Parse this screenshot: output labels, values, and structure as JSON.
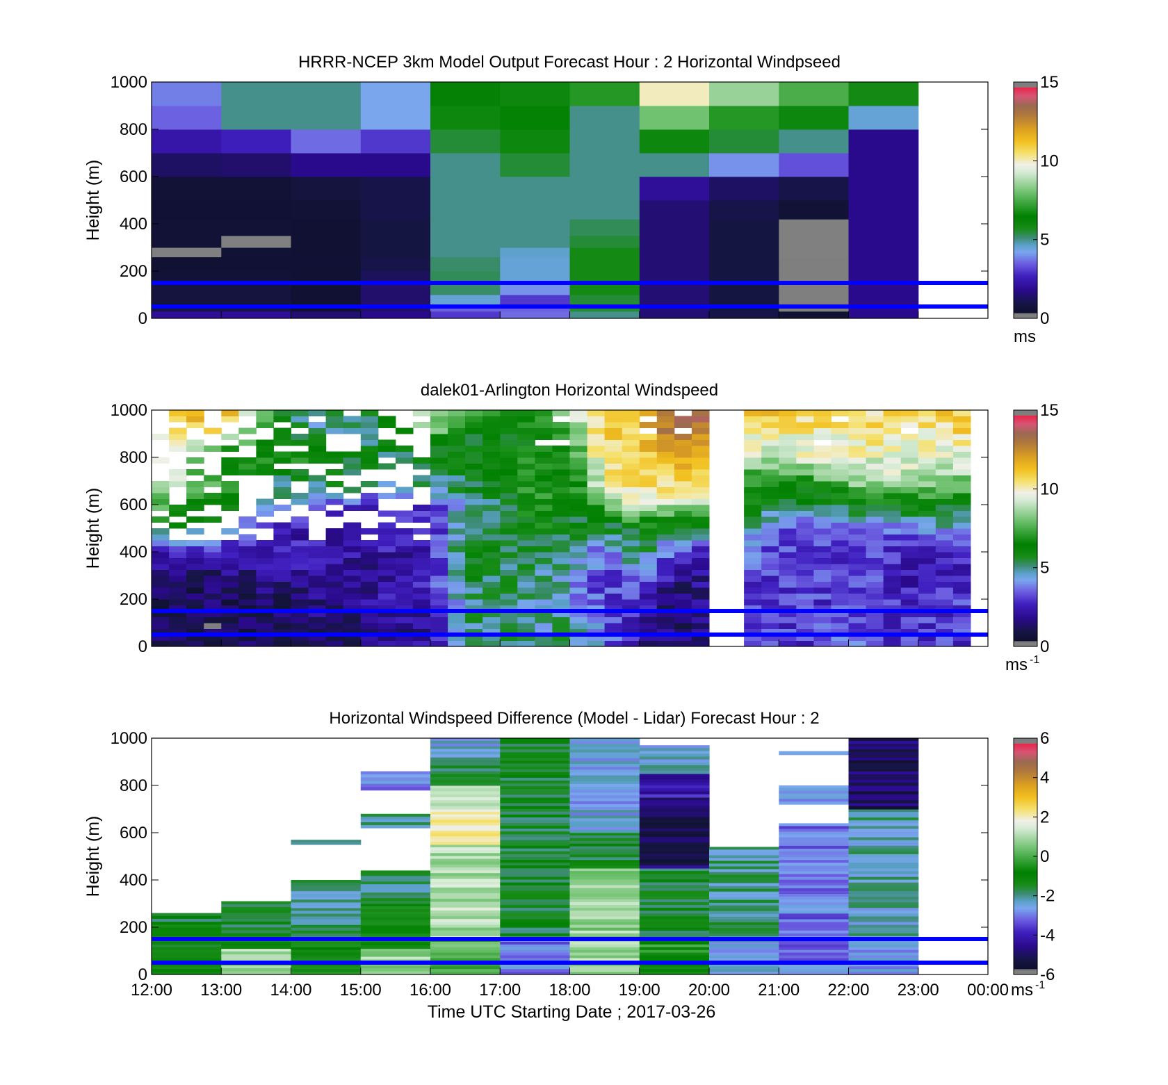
{
  "chart_data": [
    {
      "type": "heatmap",
      "title": "HRRR-NCEP 3km Model Output   Forecast Hour : 2 Horizontal Windpseed",
      "xlabel": "",
      "ylabel": "Height (m)",
      "x_hours": [
        12,
        13,
        14,
        15,
        16,
        17,
        18,
        19,
        20,
        21,
        22,
        23,
        24
      ],
      "ylim": [
        0,
        1000
      ],
      "yticks": [
        "0",
        "200",
        "400",
        "600",
        "800",
        "1000"
      ],
      "colorbar": {
        "min": 0,
        "max": 15,
        "ticks": [
          "0",
          "5",
          "10",
          "15"
        ],
        "unit": "ms",
        "unit_sup": ""
      },
      "reference_lines_m": [
        50,
        150
      ],
      "y_edges": [
        0,
        30,
        50,
        100,
        150,
        200,
        260,
        300,
        350,
        420,
        500,
        600,
        700,
        800,
        900,
        1000
      ],
      "columns": [
        {
          "start": 12,
          "end": 13,
          "values": [
            2.0,
            1.0,
            0.8,
            0.8,
            0.6,
            0.5,
            null,
            0.6,
            0.6,
            0.5,
            0.6,
            1.3,
            2.3,
            3.5,
            3.8
          ]
        },
        {
          "start": 13,
          "end": 14,
          "values": [
            2.0,
            1.0,
            0.8,
            0.8,
            0.6,
            0.5,
            0.6,
            null,
            0.6,
            0.5,
            0.6,
            1.4,
            2.6,
            5.0,
            5.0
          ]
        },
        {
          "start": 14,
          "end": 15,
          "values": [
            1.5,
            0.5,
            0.5,
            0.5,
            0.5,
            0.5,
            0.5,
            0.5,
            0.5,
            0.6,
            0.8,
            1.8,
            3.6,
            5.0,
            5.0
          ]
        },
        {
          "start": 15,
          "end": 16,
          "values": [
            1.8,
            1.4,
            1.4,
            1.4,
            1.2,
            1.0,
            0.9,
            0.9,
            0.9,
            1.0,
            1.0,
            1.8,
            3.0,
            4.2,
            4.2
          ]
        },
        {
          "start": 16,
          "end": 17,
          "values": [
            3.0,
            3.5,
            4.5,
            5.2,
            5.3,
            5.2,
            5.0,
            5.0,
            5.0,
            5.0,
            5.0,
            5.0,
            5.5,
            6.0,
            6.3
          ]
        },
        {
          "start": 17,
          "end": 18,
          "values": [
            3.6,
            3.5,
            3.0,
            4.0,
            4.5,
            4.5,
            4.6,
            5.0,
            5.0,
            5.0,
            5.0,
            5.5,
            6.0,
            6.5,
            6.0
          ]
        },
        {
          "start": 18,
          "end": 19,
          "values": [
            5.0,
            5.5,
            5.5,
            5.8,
            5.8,
            5.8,
            5.8,
            5.5,
            5.3,
            5.0,
            5.0,
            5.0,
            5.0,
            5.0,
            7.0
          ]
        },
        {
          "start": 19,
          "end": 20,
          "values": [
            1.5,
            1.5,
            1.5,
            1.5,
            1.5,
            1.5,
            1.5,
            1.5,
            1.5,
            1.5,
            2.0,
            5.0,
            6.0,
            8.0,
            10.0
          ]
        },
        {
          "start": 20,
          "end": 21,
          "values": [
            1.0,
            0.9,
            0.9,
            0.9,
            0.9,
            0.9,
            0.9,
            0.9,
            0.9,
            1.0,
            1.3,
            4.0,
            5.5,
            7.0,
            8.5
          ]
        },
        {
          "start": 21,
          "end": 22,
          "values": [
            0.5,
            0.3,
            0.3,
            0.3,
            0.3,
            0.3,
            null,
            null,
            null,
            0.6,
            1.0,
            3.3,
            5.0,
            6.0,
            7.5
          ]
        },
        {
          "start": 22,
          "end": 23,
          "values": [
            1.8,
            1.8,
            1.8,
            1.8,
            1.8,
            1.8,
            1.8,
            1.8,
            1.8,
            1.8,
            1.8,
            1.8,
            1.8,
            4.5,
            5.8
          ]
        }
      ]
    },
    {
      "type": "heatmap",
      "title": "dalek01-Arlington  Horizontal Windspeed",
      "xlabel": "",
      "ylabel": "Height (m)",
      "x_hours": [
        12,
        13,
        14,
        15,
        16,
        17,
        18,
        19,
        20,
        21,
        22,
        23,
        24
      ],
      "ylim": [
        0,
        1000
      ],
      "yticks": [
        "0",
        "200",
        "400",
        "600",
        "800",
        "1000"
      ],
      "colorbar": {
        "min": 0,
        "max": 15,
        "ticks": [
          "0",
          "5",
          "10",
          "15"
        ],
        "unit": "ms",
        "unit_sup": "-1"
      },
      "reference_lines_m": [
        50,
        150
      ],
      "gap_hours": [
        [
          20.1,
          20.6
        ],
        [
          23.8,
          24.0
        ]
      ],
      "profile_knots_hours": [
        12,
        13,
        14,
        15,
        16,
        16.5,
        17,
        17.5,
        18,
        18.5,
        19,
        19.5,
        20,
        20.1,
        20.6,
        21,
        21.5,
        22,
        22.5,
        23,
        23.5,
        23.8
      ],
      "profile_knots_m": [
        0,
        100,
        200,
        300,
        400,
        500,
        600,
        700,
        800,
        900,
        1000
      ],
      "profiles": [
        [
          1.0,
          1.0,
          1.0,
          1.5,
          2.5,
          6.0,
          8.0,
          9.5,
          10.5,
          10.5,
          11.0
        ],
        [
          1.0,
          1.0,
          1.2,
          1.5,
          2.5,
          5.0,
          5.5,
          7.5,
          6.0,
          10.0,
          12.0
        ],
        [
          1.5,
          1.5,
          1.5,
          1.8,
          2.5,
          2.5,
          4.5,
          5.0,
          7.0,
          5.0,
          5.0
        ],
        [
          1.5,
          1.8,
          2.0,
          2.0,
          2.2,
          2.5,
          3.0,
          5.5,
          5.5,
          5.0,
          5.0
        ],
        [
          2.0,
          2.0,
          2.5,
          2.5,
          2.5,
          2.5,
          3.0,
          5.0,
          5.5,
          8.0,
          9.0
        ],
        [
          4.5,
          5.0,
          5.0,
          5.5,
          6.0,
          5.5,
          5.0,
          5.5,
          6.0,
          6.0,
          9.0
        ],
        [
          5.0,
          5.5,
          5.0,
          5.5,
          5.5,
          5.0,
          5.5,
          6.0,
          6.5,
          6.0,
          6.5
        ],
        [
          5.0,
          4.5,
          5.0,
          5.0,
          5.5,
          6.5,
          7.0,
          7.0,
          6.5,
          6.0,
          7.0
        ],
        [
          5.0,
          5.0,
          4.5,
          4.5,
          5.0,
          5.5,
          6.0,
          6.0,
          6.5,
          7.5,
          9.0
        ],
        [
          4.0,
          3.5,
          3.0,
          3.0,
          3.5,
          5.5,
          7.5,
          10.0,
          10.5,
          11.0,
          11.0
        ],
        [
          2.0,
          2.5,
          3.0,
          4.0,
          5.5,
          6.0,
          9.5,
          11.0,
          11.0,
          11.0,
          11.0
        ],
        [
          1.5,
          1.5,
          1.0,
          2.0,
          3.0,
          5.5,
          9.0,
          10.5,
          11.5,
          13.0,
          14.0
        ],
        [
          1.5,
          1.5,
          2.0,
          2.0,
          2.5,
          5.0,
          9.0,
          10.5,
          12.0,
          12.5,
          14.0
        ],
        [
          2.5,
          2.5,
          3.0,
          3.0,
          3.5,
          5.0,
          6.0,
          7.0,
          7.0,
          7.0,
          7.0
        ],
        [
          3.0,
          3.0,
          3.0,
          3.0,
          3.5,
          4.5,
          6.0,
          7.0,
          9.0,
          10.0,
          11.0
        ],
        [
          3.0,
          3.0,
          3.0,
          3.0,
          3.0,
          3.5,
          5.5,
          6.5,
          9.0,
          10.0,
          11.0
        ],
        [
          3.0,
          3.0,
          3.0,
          3.0,
          3.0,
          3.5,
          5.5,
          7.0,
          9.5,
          10.0,
          11.0
        ],
        [
          3.5,
          3.5,
          3.0,
          3.0,
          3.0,
          4.0,
          6.0,
          8.5,
          9.5,
          10.0,
          11.0
        ],
        [
          3.0,
          3.0,
          3.0,
          3.0,
          3.0,
          3.5,
          6.0,
          9.0,
          9.5,
          10.5,
          10.5
        ],
        [
          3.0,
          3.0,
          2.5,
          2.0,
          2.5,
          4.0,
          6.5,
          8.5,
          9.5,
          10.0,
          10.5
        ],
        [
          3.0,
          3.0,
          3.0,
          2.5,
          2.5,
          4.5,
          6.0,
          8.0,
          9.5,
          10.5,
          11.0
        ],
        [
          3.0,
          3.0,
          3.0,
          2.5,
          2.5,
          4.5,
          6.0,
          8.0,
          9.5,
          10.5,
          11.0
        ]
      ]
    },
    {
      "type": "heatmap",
      "title": "Horizontal Windspeed Difference (Model - Lidar) Forecast Hour : 2",
      "xlabel": "Time UTC  Starting Date ; 2017-03-26",
      "ylabel": "Height (m)",
      "x_hours": [
        12,
        13,
        14,
        15,
        16,
        17,
        18,
        19,
        20,
        21,
        22,
        23,
        24
      ],
      "xticks": [
        "12:00",
        "13:00",
        "14:00",
        "15:00",
        "16:00",
        "17:00",
        "18:00",
        "19:00",
        "20:00",
        "21:00",
        "22:00",
        "23:00",
        "00:00"
      ],
      "ylim": [
        0,
        1000
      ],
      "yticks": [
        "0",
        "200",
        "400",
        "600",
        "800",
        "1000"
      ],
      "colorbar": {
        "min": -6,
        "max": 6,
        "ticks": [
          "-6",
          "-4",
          "-2",
          "0",
          "2",
          "4",
          "6"
        ],
        "unit": "ms",
        "unit_sup": "-1"
      },
      "reference_lines_m": [
        50,
        150
      ],
      "columns": [
        {
          "start": 12,
          "end": 13,
          "segments": [
            [
              0,
              150,
              -1.0
            ],
            [
              150,
              260,
              -1.5
            ]
          ]
        },
        {
          "start": 13,
          "end": 14,
          "segments": [
            [
              0,
              40,
              0.5
            ],
            [
              40,
              60,
              -0.5
            ],
            [
              60,
              110,
              1.0
            ],
            [
              110,
              150,
              -0.5
            ],
            [
              150,
              310,
              -1.5
            ]
          ]
        },
        {
          "start": 14,
          "end": 15,
          "segments": [
            [
              0,
              150,
              -1.0
            ],
            [
              150,
              400,
              -2.0
            ],
            [
              550,
              570,
              -2.5
            ]
          ]
        },
        {
          "start": 15,
          "end": 16,
          "segments": [
            [
              0,
              40,
              0.5
            ],
            [
              40,
              110,
              0.8
            ],
            [
              110,
              150,
              -0.5
            ],
            [
              150,
              300,
              -1.0
            ],
            [
              300,
              440,
              -1.8
            ],
            [
              620,
              680,
              -2.0
            ],
            [
              780,
              820,
              -3.0
            ],
            [
              820,
              860,
              -3.0
            ]
          ]
        },
        {
          "start": 16,
          "end": 17,
          "segments": [
            [
              0,
              150,
              0.0
            ],
            [
              150,
              550,
              1.0
            ],
            [
              550,
              700,
              2.0
            ],
            [
              700,
              800,
              1.0
            ],
            [
              800,
              920,
              -1.5
            ],
            [
              920,
              1000,
              -2.5
            ]
          ]
        },
        {
          "start": 17,
          "end": 18,
          "segments": [
            [
              0,
              150,
              -3.0
            ],
            [
              150,
              1000,
              -1.5
            ]
          ]
        },
        {
          "start": 18,
          "end": 19,
          "segments": [
            [
              0,
              150,
              0.8
            ],
            [
              150,
              450,
              0.8
            ],
            [
              450,
              600,
              -1.5
            ],
            [
              600,
              1000,
              -2.5
            ]
          ]
        },
        {
          "start": 19,
          "end": 20,
          "segments": [
            [
              0,
              150,
              -0.5
            ],
            [
              150,
              450,
              -1.5
            ],
            [
              450,
              750,
              -5.0
            ],
            [
              750,
              850,
              -4.0
            ],
            [
              850,
              970,
              -2.5
            ]
          ]
        },
        {
          "start": 20,
          "end": 21,
          "segments": [
            [
              0,
              150,
              -2.5
            ],
            [
              150,
              540,
              -2.0
            ]
          ]
        },
        {
          "start": 21,
          "end": 22,
          "segments": [
            [
              0,
              150,
              -3.0
            ],
            [
              150,
              640,
              -3.0
            ],
            [
              720,
              800,
              -3.0
            ],
            [
              930,
              945,
              -2.5
            ]
          ]
        },
        {
          "start": 22,
          "end": 23,
          "segments": [
            [
              0,
              150,
              -2.5
            ],
            [
              150,
              700,
              -2.2
            ],
            [
              700,
              800,
              -5.0
            ],
            [
              800,
              1000,
              -5.0
            ]
          ]
        }
      ]
    }
  ]
}
